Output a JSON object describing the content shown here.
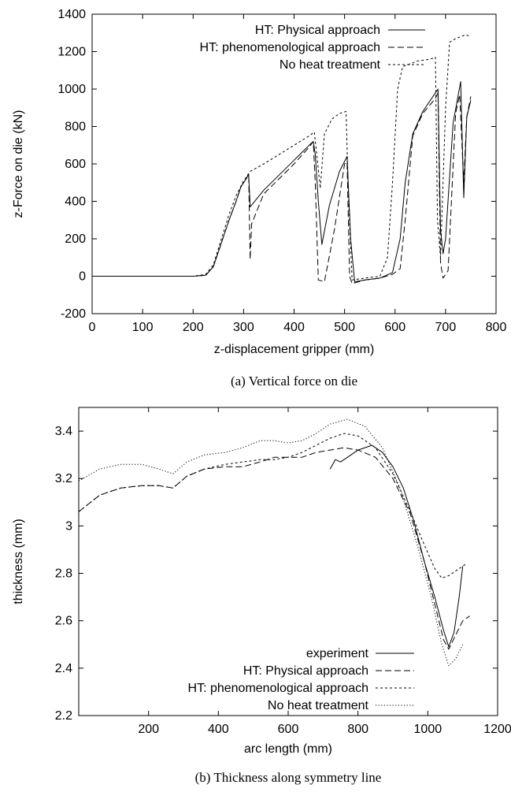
{
  "chart_data": [
    {
      "type": "line",
      "caption": "(a) Vertical force on die",
      "xlabel": "z-displacement gripper (mm)",
      "ylabel": "z-Force on die (kN)",
      "xlim": [
        0,
        800
      ],
      "ylim": [
        -200,
        1400
      ],
      "xticks": [
        0,
        100,
        200,
        300,
        400,
        500,
        600,
        700,
        800
      ],
      "yticks": [
        -200,
        0,
        200,
        400,
        600,
        800,
        1000,
        1200,
        1400
      ],
      "grid": false,
      "legend": "top-right",
      "series": [
        {
          "name": "HT: Physical approach",
          "dash": "solid",
          "points": [
            [
              0,
              0
            ],
            [
              200,
              0
            ],
            [
              225,
              5
            ],
            [
              240,
              50
            ],
            [
              255,
              170
            ],
            [
              270,
              290
            ],
            [
              285,
              400
            ],
            [
              295,
              480
            ],
            [
              300,
              500
            ],
            [
              305,
              520
            ],
            [
              310,
              545
            ],
            [
              313,
              370
            ],
            [
              340,
              460
            ],
            [
              370,
              540
            ],
            [
              400,
              620
            ],
            [
              430,
              700
            ],
            [
              438,
              720
            ],
            [
              442,
              650
            ],
            [
              448,
              400
            ],
            [
              455,
              170
            ],
            [
              470,
              380
            ],
            [
              490,
              560
            ],
            [
              505,
              640
            ],
            [
              512,
              200
            ],
            [
              520,
              -30
            ],
            [
              540,
              -20
            ],
            [
              570,
              -10
            ],
            [
              595,
              20
            ],
            [
              610,
              200
            ],
            [
              620,
              500
            ],
            [
              635,
              760
            ],
            [
              655,
              880
            ],
            [
              680,
              980
            ],
            [
              685,
              1000
            ],
            [
              690,
              250
            ],
            [
              695,
              120
            ],
            [
              700,
              200
            ],
            [
              715,
              820
            ],
            [
              730,
              1040
            ],
            [
              736,
              420
            ],
            [
              742,
              850
            ],
            [
              750,
              940
            ]
          ]
        },
        {
          "name": "HT: phenomenological approach",
          "dash": "dashed",
          "points": [
            [
              0,
              0
            ],
            [
              200,
              0
            ],
            [
              225,
              5
            ],
            [
              240,
              50
            ],
            [
              255,
              170
            ],
            [
              270,
              290
            ],
            [
              285,
              400
            ],
            [
              295,
              480
            ],
            [
              300,
              500
            ],
            [
              305,
              520
            ],
            [
              310,
              545
            ],
            [
              313,
              90
            ],
            [
              316,
              280
            ],
            [
              340,
              440
            ],
            [
              370,
              520
            ],
            [
              400,
              600
            ],
            [
              430,
              690
            ],
            [
              438,
              720
            ],
            [
              442,
              500
            ],
            [
              448,
              -20
            ],
            [
              460,
              -30
            ],
            [
              480,
              250
            ],
            [
              500,
              600
            ],
            [
              505,
              610
            ],
            [
              510,
              0
            ],
            [
              515,
              -40
            ],
            [
              540,
              -20
            ],
            [
              570,
              -10
            ],
            [
              595,
              10
            ],
            [
              610,
              40
            ],
            [
              620,
              300
            ],
            [
              635,
              750
            ],
            [
              655,
              870
            ],
            [
              680,
              950
            ],
            [
              685,
              980
            ],
            [
              690,
              70
            ],
            [
              695,
              -10
            ],
            [
              705,
              30
            ],
            [
              720,
              870
            ],
            [
              728,
              970
            ],
            [
              736,
              500
            ],
            [
              742,
              850
            ],
            [
              750,
              960
            ]
          ]
        },
        {
          "name": "No heat treatment",
          "dash": "dotted",
          "points": [
            [
              0,
              0
            ],
            [
              200,
              0
            ],
            [
              225,
              10
            ],
            [
              240,
              60
            ],
            [
              255,
              190
            ],
            [
              270,
              320
            ],
            [
              285,
              430
            ],
            [
              300,
              510
            ],
            [
              313,
              560
            ],
            [
              340,
              600
            ],
            [
              370,
              650
            ],
            [
              400,
              700
            ],
            [
              430,
              750
            ],
            [
              440,
              770
            ],
            [
              447,
              600
            ],
            [
              452,
              470
            ],
            [
              460,
              760
            ],
            [
              475,
              840
            ],
            [
              490,
              870
            ],
            [
              503,
              880
            ],
            [
              508,
              400
            ],
            [
              515,
              -20
            ],
            [
              540,
              -10
            ],
            [
              570,
              0
            ],
            [
              585,
              100
            ],
            [
              595,
              500
            ],
            [
              605,
              1000
            ],
            [
              615,
              1120
            ],
            [
              645,
              1150
            ],
            [
              670,
              1160
            ],
            [
              680,
              1170
            ],
            [
              684,
              300
            ],
            [
              690,
              100
            ],
            [
              700,
              900
            ],
            [
              708,
              1250
            ],
            [
              720,
              1270
            ],
            [
              740,
              1290
            ],
            [
              750,
              1280
            ]
          ]
        }
      ]
    },
    {
      "type": "line",
      "caption": "(b) Thickness along symmetry line",
      "xlabel": "arc length (mm)",
      "ylabel": "thickness (mm)",
      "xlim": [
        0,
        1200
      ],
      "ylim": [
        2.2,
        3.5
      ],
      "xticks": [
        200,
        400,
        600,
        800,
        1000,
        1200
      ],
      "yticks": [
        2.2,
        2.4,
        2.6,
        2.8,
        3,
        3.2,
        3.4
      ],
      "grid": false,
      "legend": "bottom-right",
      "series": [
        {
          "name": "experiment",
          "dash": "solid",
          "points": [
            [
              720,
              3.24
            ],
            [
              735,
              3.28
            ],
            [
              750,
              3.27
            ],
            [
              770,
              3.29
            ],
            [
              800,
              3.32
            ],
            [
              840,
              3.34
            ],
            [
              870,
              3.31
            ],
            [
              900,
              3.25
            ],
            [
              930,
              3.16
            ],
            [
              960,
              3.02
            ],
            [
              990,
              2.85
            ],
            [
              1020,
              2.7
            ],
            [
              1045,
              2.56
            ],
            [
              1060,
              2.49
            ],
            [
              1075,
              2.55
            ],
            [
              1090,
              2.7
            ],
            [
              1100,
              2.83
            ]
          ]
        },
        {
          "name": "HT: Physical approach",
          "dash": "dashed",
          "points": [
            [
              0,
              3.06
            ],
            [
              60,
              3.13
            ],
            [
              120,
              3.16
            ],
            [
              180,
              3.17
            ],
            [
              230,
              3.17
            ],
            [
              270,
              3.16
            ],
            [
              310,
              3.21
            ],
            [
              360,
              3.24
            ],
            [
              420,
              3.25
            ],
            [
              470,
              3.25
            ],
            [
              520,
              3.27
            ],
            [
              560,
              3.29
            ],
            [
              600,
              3.29
            ],
            [
              640,
              3.29
            ],
            [
              680,
              3.31
            ],
            [
              720,
              3.32
            ],
            [
              760,
              3.33
            ],
            [
              800,
              3.32
            ],
            [
              850,
              3.29
            ],
            [
              900,
              3.2
            ],
            [
              950,
              3.05
            ],
            [
              990,
              2.85
            ],
            [
              1020,
              2.67
            ],
            [
              1045,
              2.52
            ],
            [
              1060,
              2.48
            ],
            [
              1080,
              2.54
            ],
            [
              1100,
              2.6
            ],
            [
              1120,
              2.62
            ]
          ]
        },
        {
          "name": "HT: phenomenological approach",
          "dash": "dotted",
          "points": [
            [
              0,
              3.06
            ],
            [
              60,
              3.13
            ],
            [
              120,
              3.16
            ],
            [
              180,
              3.17
            ],
            [
              230,
              3.17
            ],
            [
              270,
              3.16
            ],
            [
              310,
              3.21
            ],
            [
              360,
              3.24
            ],
            [
              420,
              3.26
            ],
            [
              470,
              3.27
            ],
            [
              520,
              3.28
            ],
            [
              560,
              3.28
            ],
            [
              600,
              3.29
            ],
            [
              640,
              3.31
            ],
            [
              680,
              3.34
            ],
            [
              720,
              3.37
            ],
            [
              760,
              3.39
            ],
            [
              800,
              3.38
            ],
            [
              850,
              3.33
            ],
            [
              900,
              3.22
            ],
            [
              950,
              3.06
            ],
            [
              990,
              2.92
            ],
            [
              1020,
              2.82
            ],
            [
              1040,
              2.78
            ],
            [
              1060,
              2.79
            ],
            [
              1090,
              2.82
            ],
            [
              1110,
              2.84
            ]
          ]
        },
        {
          "name": "No heat treatment",
          "dash": "fine-dotted",
          "points": [
            [
              0,
              3.19
            ],
            [
              60,
              3.24
            ],
            [
              120,
              3.26
            ],
            [
              180,
              3.26
            ],
            [
              230,
              3.24
            ],
            [
              270,
              3.22
            ],
            [
              310,
              3.27
            ],
            [
              360,
              3.3
            ],
            [
              420,
              3.31
            ],
            [
              470,
              3.33
            ],
            [
              520,
              3.36
            ],
            [
              560,
              3.36
            ],
            [
              600,
              3.35
            ],
            [
              640,
              3.36
            ],
            [
              680,
              3.39
            ],
            [
              720,
              3.43
            ],
            [
              770,
              3.45
            ],
            [
              820,
              3.42
            ],
            [
              870,
              3.33
            ],
            [
              920,
              3.16
            ],
            [
              970,
              2.92
            ],
            [
              1010,
              2.7
            ],
            [
              1040,
              2.5
            ],
            [
              1060,
              2.41
            ],
            [
              1080,
              2.44
            ],
            [
              1100,
              2.5
            ]
          ]
        }
      ]
    }
  ]
}
